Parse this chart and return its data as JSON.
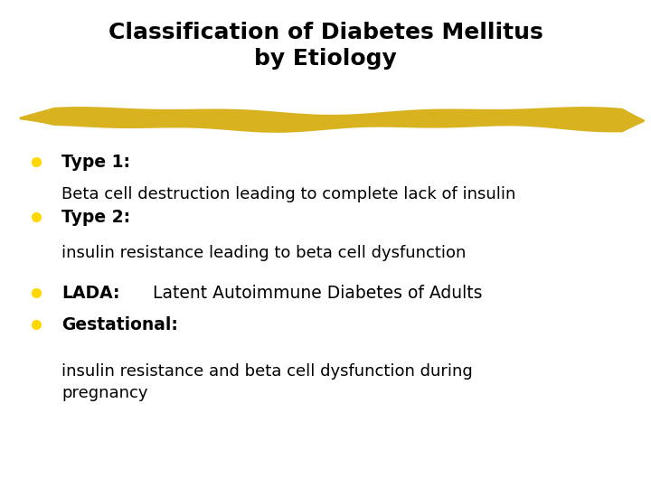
{
  "title_line1": "Classification of Diabetes Mellitus",
  "title_line2": "by Etiology",
  "background_color": "#ffffff",
  "title_color": "#000000",
  "title_fontsize": 18,
  "bullet_color": "#FFD700",
  "highlight_color": "#D4A800",
  "items": [
    {
      "bold_text": "Type 1:",
      "normal_text": "",
      "sub_text": "Beta cell destruction leading to complete lack of insulin"
    },
    {
      "bold_text": "Type 2:",
      "normal_text": "",
      "sub_text": "insulin resistance leading to beta cell dysfunction"
    },
    {
      "bold_text": "LADA:",
      "normal_text": "      Latent Autoimmune Diabetes of Adults",
      "sub_text": ""
    },
    {
      "bold_text": "Gestational:",
      "normal_text": "",
      "sub_text": "insulin resistance and beta cell dysfunction during\npregnancy"
    }
  ],
  "text_color": "#000000",
  "main_fontsize": 13.5,
  "sub_fontsize": 13
}
